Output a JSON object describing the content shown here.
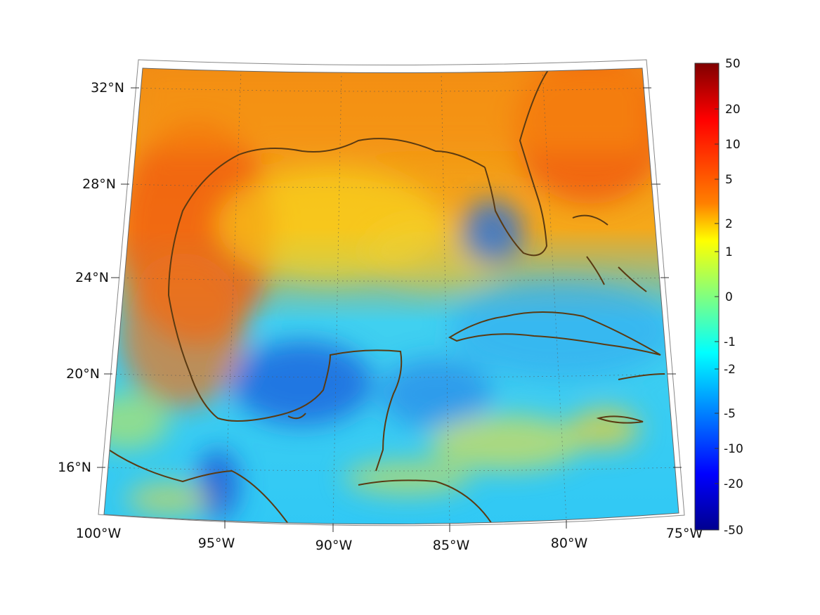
{
  "map": {
    "region": "Gulf of Mexico and Caribbean",
    "projection": "conic",
    "lon_range": [
      -100,
      -75
    ],
    "lat_range": [
      14,
      33
    ],
    "coastline_color": "#5a3a12",
    "gridline_style": "dotted"
  },
  "axes": {
    "lon_labels": [
      {
        "value": -100,
        "text": "100°W"
      },
      {
        "value": -95,
        "text": "95°W"
      },
      {
        "value": -90,
        "text": "90°W"
      },
      {
        "value": -85,
        "text": "85°W"
      },
      {
        "value": -80,
        "text": "80°W"
      },
      {
        "value": -75,
        "text": "75°W"
      }
    ],
    "lat_labels": [
      {
        "value": 32,
        "text": "32°N"
      },
      {
        "value": 28,
        "text": "28°N"
      },
      {
        "value": 24,
        "text": "24°N"
      },
      {
        "value": 20,
        "text": "20°N"
      },
      {
        "value": 16,
        "text": "16°N"
      }
    ]
  },
  "colorbar": {
    "colormap": "jet",
    "range": [
      -50,
      50
    ],
    "ticks": [
      "50",
      "20",
      "10",
      "5",
      "2",
      "1",
      "0",
      "-1",
      "-2",
      "-5",
      "-10",
      "-20",
      "-50"
    ],
    "colors": [
      "#7f0000",
      "#ff0000",
      "#ff8000",
      "#ffff00",
      "#80ff80",
      "#00ffff",
      "#0080ff",
      "#0000ff",
      "#00008f"
    ]
  }
}
